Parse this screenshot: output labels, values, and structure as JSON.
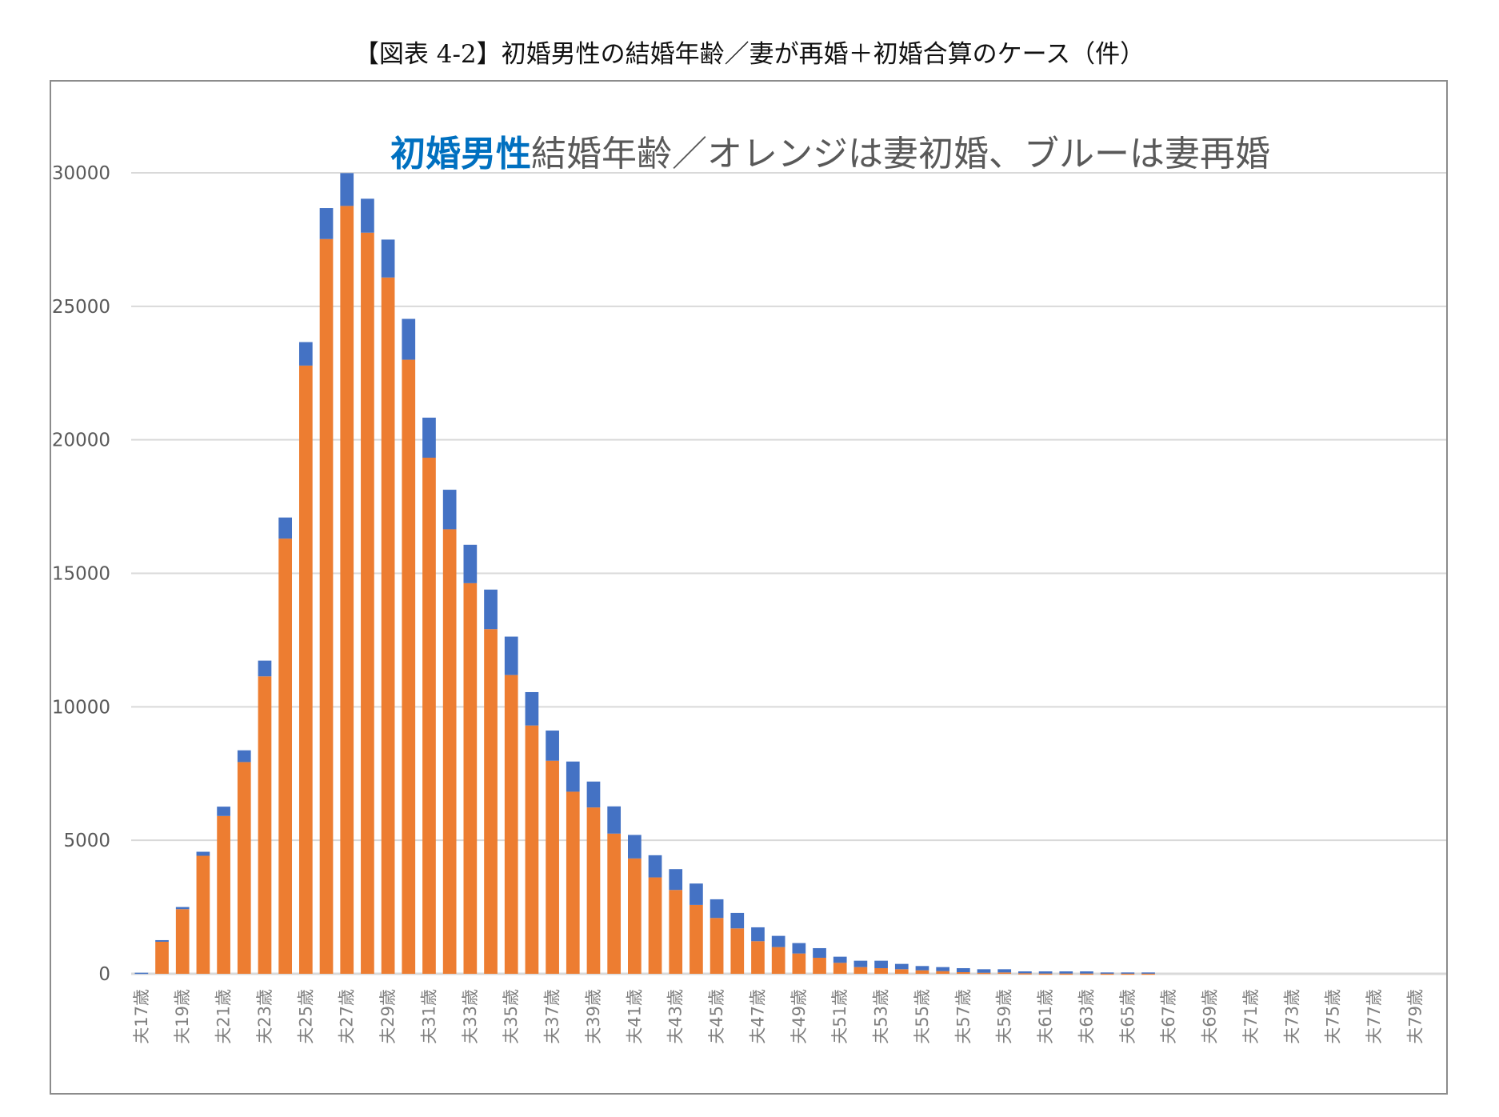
{
  "title": "【図表 4-2】初婚男性の結婚年齢／妻が再婚＋初婚合算のケース（件）",
  "chart_data": {
    "type": "bar",
    "stacked": true,
    "title": "",
    "subtitle_highlight": "初婚男性",
    "subtitle_rest": "結婚年齢／オレンジは妻初婚、ブルーは妻再婚",
    "xlabel": "",
    "ylabel": "",
    "ylim": [
      0,
      30000
    ],
    "yticks": [
      0,
      5000,
      10000,
      15000,
      20000,
      25000,
      30000
    ],
    "grid": true,
    "legend": "none",
    "categories": [
      "夫17歳",
      "夫18歳",
      "夫19歳",
      "夫20歳",
      "夫21歳",
      "夫22歳",
      "夫23歳",
      "夫24歳",
      "夫25歳",
      "夫26歳",
      "夫27歳",
      "夫28歳",
      "夫29歳",
      "夫30歳",
      "夫31歳",
      "夫32歳",
      "夫33歳",
      "夫34歳",
      "夫35歳",
      "夫36歳",
      "夫37歳",
      "夫38歳",
      "夫39歳",
      "夫40歳",
      "夫41歳",
      "夫42歳",
      "夫43歳",
      "夫44歳",
      "夫45歳",
      "夫46歳",
      "夫47歳",
      "夫48歳",
      "夫49歳",
      "夫50歳",
      "夫51歳",
      "夫52歳",
      "夫53歳",
      "夫54歳",
      "夫55歳",
      "夫56歳",
      "夫57歳",
      "夫58歳",
      "夫59歳",
      "夫60歳",
      "夫61歳",
      "夫62歳",
      "夫63歳",
      "夫64歳",
      "夫65歳",
      "夫66歳",
      "夫67歳",
      "夫68歳",
      "夫69歳",
      "夫70歳",
      "夫71歳",
      "夫72歳",
      "夫73歳",
      "夫74歳",
      "夫75歳",
      "夫76歳",
      "夫77歳",
      "夫78歳",
      "夫79歳",
      "夫80歳"
    ],
    "tick_labels": [
      "夫17歳",
      "夫19歳",
      "夫21歳",
      "夫23歳",
      "夫25歳",
      "夫27歳",
      "夫29歳",
      "夫31歳",
      "夫33歳",
      "夫35歳",
      "夫37歳",
      "夫39歳",
      "夫41歳",
      "夫43歳",
      "夫45歳",
      "夫47歳",
      "夫49歳",
      "夫51歳",
      "夫53歳",
      "夫55歳",
      "夫57歳",
      "夫59歳",
      "夫61歳",
      "夫63歳",
      "夫65歳",
      "夫67歳",
      "夫69歳",
      "夫71歳",
      "夫73歳",
      "夫75歳",
      "夫77歳",
      "夫79歳"
    ],
    "series": [
      {
        "name": "妻初婚",
        "color": "#ED7D31",
        "values": [
          0,
          1200,
          2420,
          4420,
          5910,
          7930,
          11140,
          16300,
          22780,
          27520,
          28760,
          27760,
          26080,
          23000,
          19330,
          16650,
          14630,
          12910,
          11190,
          9300,
          7980,
          6820,
          6230,
          5250,
          4320,
          3610,
          3140,
          2580,
          2090,
          1700,
          1220,
          1000,
          760,
          600,
          410,
          250,
          210,
          170,
          130,
          100,
          60,
          40,
          50,
          20,
          10,
          10,
          10,
          10,
          10,
          10,
          0,
          0,
          0,
          0,
          0,
          0,
          0,
          0,
          0,
          0,
          0,
          0,
          0,
          0
        ]
      },
      {
        "name": "妻再婚",
        "color": "#4472C4",
        "values": [
          40,
          60,
          80,
          150,
          350,
          440,
          590,
          790,
          880,
          1160,
          1230,
          1270,
          1420,
          1530,
          1500,
          1480,
          1440,
          1480,
          1440,
          1250,
          1130,
          1130,
          970,
          1020,
          880,
          830,
          780,
          800,
          700,
          580,
          520,
          420,
          390,
          360,
          230,
          240,
          280,
          200,
          160,
          150,
          150,
          130,
          120,
          70,
          80,
          80,
          80,
          40,
          40,
          40,
          0,
          0,
          0,
          0,
          0,
          0,
          0,
          0,
          0,
          0,
          0,
          0,
          0,
          0
        ]
      }
    ]
  }
}
